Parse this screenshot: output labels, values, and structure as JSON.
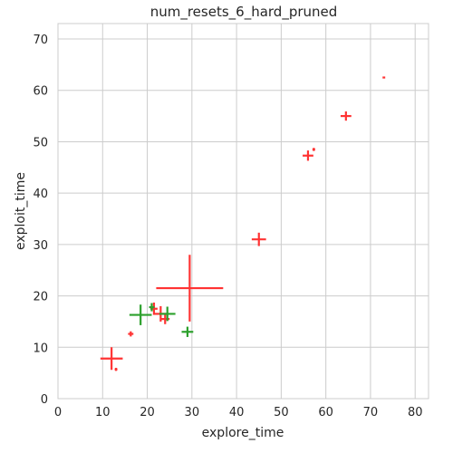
{
  "chart_data": {
    "type": "scatter",
    "title": "num_resets_6_hard_pruned",
    "xlabel": "explore_time",
    "ylabel": "exploit_time",
    "xlim": [
      0,
      83
    ],
    "ylim": [
      0,
      73
    ],
    "xticks": [
      0,
      10,
      20,
      30,
      40,
      50,
      60,
      70,
      80
    ],
    "yticks": [
      0,
      10,
      20,
      30,
      40,
      50,
      60,
      70
    ],
    "grid": true,
    "marker": "cross with x/y error extents",
    "series": [
      {
        "color": "#ff3333",
        "points": [
          {
            "x": 12.0,
            "y": 7.8,
            "xerr": 2.5,
            "yerr": 2.2
          },
          {
            "x": 13.0,
            "y": 5.7,
            "xerr": 0.3,
            "yerr": 0.3
          },
          {
            "x": 16.3,
            "y": 12.6,
            "xerr": 0.6,
            "yerr": 0.5
          },
          {
            "x": 21.5,
            "y": 17.5,
            "xerr": 0.8,
            "yerr": 1.2
          },
          {
            "x": 23.0,
            "y": 16.5,
            "xerr": 1.5,
            "yerr": 1.5
          },
          {
            "x": 24.0,
            "y": 15.5,
            "xerr": 1.0,
            "yerr": 1.0
          },
          {
            "x": 29.5,
            "y": 21.5,
            "xerr": 7.5,
            "yerr": 6.5
          },
          {
            "x": 45.0,
            "y": 31.0,
            "xerr": 1.6,
            "yerr": 1.3
          },
          {
            "x": 56.0,
            "y": 47.3,
            "xerr": 1.2,
            "yerr": 1.0
          },
          {
            "x": 57.3,
            "y": 48.5,
            "xerr": 0.3,
            "yerr": 0.3
          },
          {
            "x": 64.5,
            "y": 55.0,
            "xerr": 1.2,
            "yerr": 0.9
          },
          {
            "x": 73.0,
            "y": 62.5,
            "xerr": 0.3,
            "yerr": 0.1
          }
        ]
      },
      {
        "color": "#2ca02c",
        "points": [
          {
            "x": 18.5,
            "y": 16.3,
            "xerr": 2.5,
            "yerr": 2.0
          },
          {
            "x": 21.0,
            "y": 17.8,
            "xerr": 0.6,
            "yerr": 0.8
          },
          {
            "x": 24.5,
            "y": 16.5,
            "xerr": 1.8,
            "yerr": 1.4
          },
          {
            "x": 29.0,
            "y": 13.0,
            "xerr": 1.3,
            "yerr": 1.0
          }
        ]
      }
    ]
  }
}
